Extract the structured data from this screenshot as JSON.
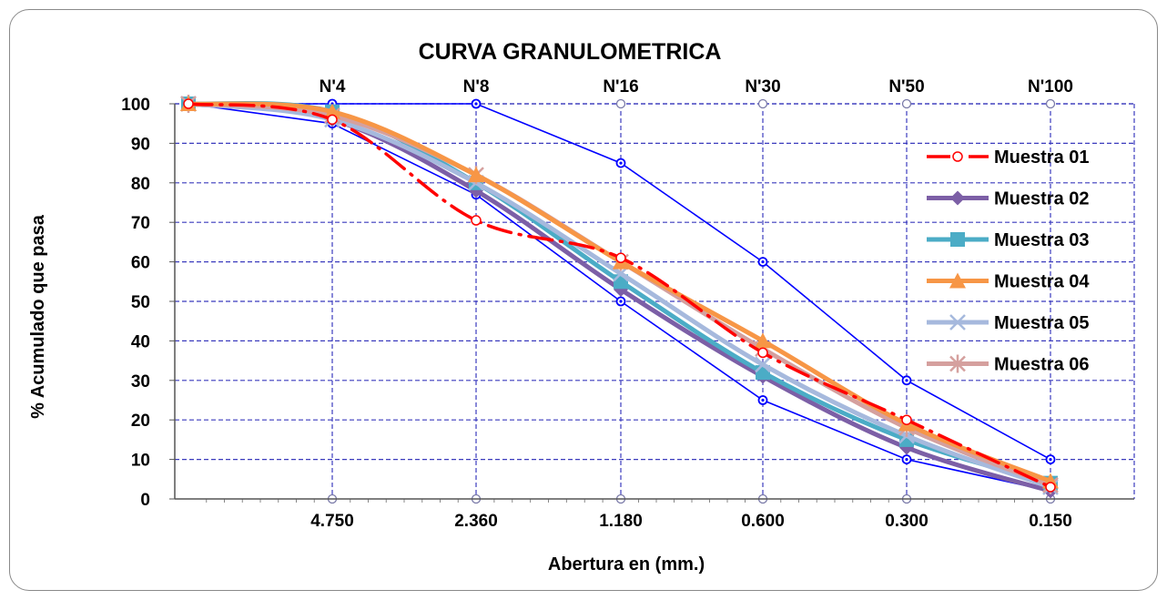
{
  "chart_data": {
    "type": "line",
    "title": "CURVA GRANULOMETRICA",
    "xlabel": "Abertura en (mm.)",
    "ylabel": "% Acumulado que pasa",
    "ylim": [
      0,
      100
    ],
    "yticks": [
      "0",
      "10",
      "20",
      "30",
      "40",
      "50",
      "60",
      "70",
      "80",
      "90",
      "100"
    ],
    "x_bottom_labels": [
      "",
      "4.750",
      "2.360",
      "1.180",
      "0.600",
      "0.300",
      "0.150"
    ],
    "x_top_labels": [
      "",
      "N'4",
      "N'8",
      "N'16",
      "N'30",
      "N'50",
      "N'100"
    ],
    "grid": true,
    "legend_position": "right",
    "series": [
      {
        "name": "Muestra 01",
        "color": "#ff0000",
        "style": "dashdot",
        "marker": "circle-open",
        "values": [
          100,
          96,
          70.5,
          61,
          37,
          20,
          3
        ]
      },
      {
        "name": "Muestra 02",
        "color": "#7c5fa6",
        "style": "solid",
        "marker": "diamond",
        "values": [
          100,
          96,
          78,
          53,
          31,
          13,
          2
        ]
      },
      {
        "name": "Muestra 03",
        "color": "#4bacc6",
        "style": "solid",
        "marker": "square",
        "values": [
          100,
          98,
          80,
          55,
          32,
          15,
          4
        ]
      },
      {
        "name": "Muestra 04",
        "color": "#f79646",
        "style": "solid",
        "marker": "triangle",
        "values": [
          100,
          98,
          82,
          60,
          40,
          19,
          4.5
        ]
      },
      {
        "name": "Muestra 05",
        "color": "#a6b9dd",
        "style": "solid",
        "marker": "x",
        "values": [
          100,
          96,
          80,
          57,
          34,
          16,
          3
        ]
      },
      {
        "name": "Muestra 06",
        "color": "#d5a09e",
        "style": "solid",
        "marker": "star",
        "values": [
          100,
          97,
          82,
          60,
          38,
          18,
          3.5
        ]
      }
    ],
    "limit_curves": [
      {
        "color": "#0000ff",
        "values": [
          100,
          100,
          100,
          85,
          60,
          30,
          10
        ]
      },
      {
        "color": "#0000ff",
        "values": [
          100,
          95,
          77,
          50,
          25,
          10,
          2
        ]
      }
    ]
  }
}
